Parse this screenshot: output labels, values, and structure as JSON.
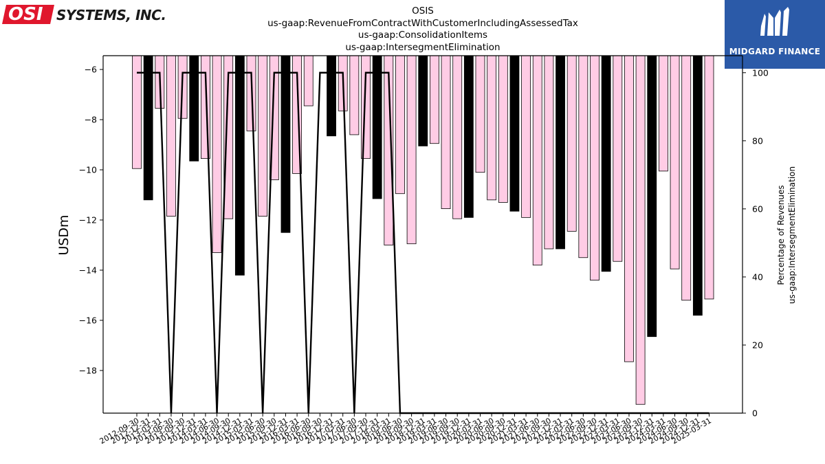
{
  "logo_left": {
    "badge": "OSI",
    "text": "SYSTEMS, INC."
  },
  "logo_right": {
    "text": "MIDGARD FINANCE"
  },
  "colors": {
    "bar_normal": "#ffcce5",
    "bar_highlight": "#000000",
    "line": "#000000"
  },
  "chart_data": {
    "type": "bar",
    "title": [
      "OSIS",
      "us-gaap:RevenueFromContractWithCustomerIncludingAssessedTax",
      "us-gaap:ConsolidationItems",
      "us-gaap:IntersegmentElimination"
    ],
    "ylabel": "USDm",
    "y2label": [
      "Percentage of Revenues",
      "us-gaap:IntersegmentElimination"
    ],
    "ylim": [
      -19.7,
      -5.45
    ],
    "y2lim": [
      0,
      105
    ],
    "yticks": [
      -6,
      -8,
      -10,
      -12,
      -14,
      -16,
      -18
    ],
    "y2ticks": [
      0,
      20,
      40,
      60,
      80,
      100
    ],
    "categories": [
      "2012-09-30",
      "2012-12-31",
      "2013-03-31",
      "2013-06-30",
      "2013-09-30",
      "2013-12-31",
      "2014-03-31",
      "2014-06-30",
      "2014-09-30",
      "2014-12-31",
      "2015-03-31",
      "2015-06-30",
      "2015-09-30",
      "2015-12-31",
      "2016-03-31",
      "2016-06-30",
      "2016-09-30",
      "2016-12-31",
      "2017-03-31",
      "2017-06-30",
      "2017-09-30",
      "2017-12-31",
      "2018-03-31",
      "2018-06-30",
      "2018-09-30",
      "2018-12-31",
      "2019-03-31",
      "2019-06-30",
      "2019-09-30",
      "2019-12-31",
      "2020-03-31",
      "2020-06-30",
      "2020-09-30",
      "2020-12-31",
      "2021-03-31",
      "2021-06-30",
      "2021-09-30",
      "2021-12-31",
      "2022-03-31",
      "2022-06-30",
      "2022-09-30",
      "2022-12-31",
      "2023-03-31",
      "2023-06-30",
      "2023-09-30",
      "2023-12-31",
      "2024-03-31",
      "2024-06-30",
      "2024-09-30",
      "2024-12-31",
      "2025-03-31"
    ],
    "values": [
      -9.95,
      -11.2,
      -7.55,
      -11.85,
      -7.95,
      -9.65,
      -9.55,
      -13.3,
      -11.95,
      -14.2,
      -8.45,
      -11.85,
      -10.4,
      -12.5,
      -10.15,
      -7.45,
      -5.45,
      -8.65,
      -7.65,
      -8.6,
      -9.55,
      -11.15,
      -13.0,
      -10.95,
      -12.95,
      -9.05,
      -8.95,
      -11.55,
      -11.95,
      -11.9,
      -10.1,
      -11.2,
      -11.3,
      -11.65,
      -11.9,
      -13.8,
      -13.15,
      -13.15,
      -12.45,
      -13.5,
      -14.4,
      -14.05,
      -13.65,
      -17.65,
      -19.35,
      -16.65,
      -10.05,
      -13.95,
      -15.2,
      -15.8,
      -15.15
    ],
    "highlight": [
      false,
      true,
      false,
      false,
      false,
      true,
      false,
      false,
      false,
      true,
      false,
      false,
      false,
      true,
      false,
      false,
      true,
      true,
      false,
      false,
      false,
      true,
      false,
      false,
      false,
      true,
      false,
      false,
      false,
      true,
      false,
      false,
      false,
      true,
      false,
      false,
      false,
      true,
      false,
      false,
      false,
      true,
      false,
      false,
      false,
      true,
      false,
      false,
      false,
      true,
      false
    ],
    "percentage_of_revenues": [
      100,
      100,
      100,
      0,
      100,
      100,
      100,
      0,
      100,
      100,
      100,
      0,
      100,
      100,
      100,
      0,
      100,
      100,
      100,
      0,
      100,
      100,
      100,
      0,
      0,
      0,
      0,
      0,
      0,
      0,
      0,
      0,
      0,
      0,
      0,
      0,
      0,
      0,
      0,
      0,
      0,
      0,
      0,
      0,
      0,
      0,
      0,
      0,
      0,
      0,
      0
    ]
  }
}
